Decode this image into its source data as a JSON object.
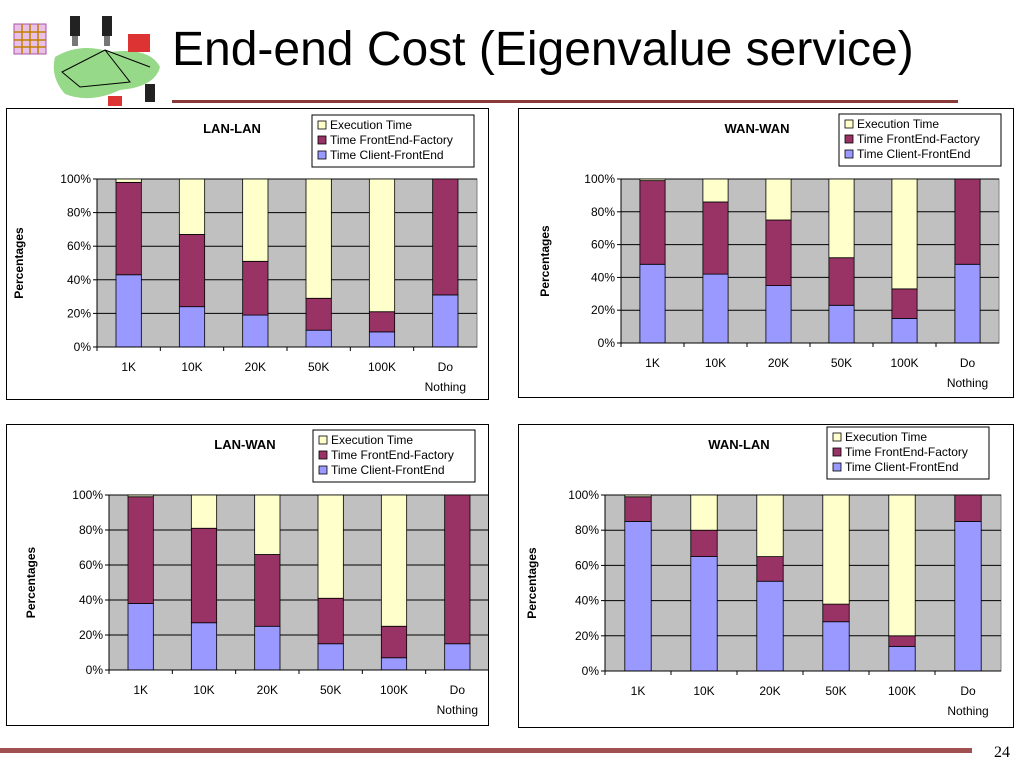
{
  "slide": {
    "title": "End-end Cost (Eigenvalue service)",
    "page_number": "24"
  },
  "colors": {
    "execution": "#ffffcc",
    "frontend_factory": "#993366",
    "client_frontend": "#9999ff",
    "plot_bg": "#c0c0c0",
    "rule": "#8b3a3a"
  },
  "chart_data": [
    {
      "type": "bar",
      "stacked": "percent",
      "title": "LAN-LAN",
      "ylabel": "Percentages",
      "categories": [
        "1K",
        "10K",
        "20K",
        "50K",
        "100K",
        "Do Nothing"
      ],
      "yticks": [
        "0%",
        "20%",
        "40%",
        "60%",
        "80%",
        "100%"
      ],
      "ylim": [
        0,
        100
      ],
      "legend_position": "top-right",
      "series": [
        {
          "name": "Time Client-FrontEnd",
          "values": [
            43,
            24,
            19,
            10,
            9,
            31
          ]
        },
        {
          "name": "Time FrontEnd-Factory",
          "values": [
            55,
            43,
            32,
            19,
            12,
            69
          ]
        },
        {
          "name": "Execution Time",
          "values": [
            2,
            33,
            49,
            71,
            79,
            0
          ]
        }
      ]
    },
    {
      "type": "bar",
      "stacked": "percent",
      "title": "WAN-WAN",
      "ylabel": "Percentages",
      "categories": [
        "1K",
        "10K",
        "20K",
        "50K",
        "100K",
        "Do Nothing"
      ],
      "yticks": [
        "0%",
        "20%",
        "40%",
        "60%",
        "80%",
        "100%"
      ],
      "ylim": [
        0,
        100
      ],
      "legend_position": "top-right",
      "series": [
        {
          "name": "Time Client-FrontEnd",
          "values": [
            48,
            42,
            35,
            23,
            15,
            48
          ]
        },
        {
          "name": "Time FrontEnd-Factory",
          "values": [
            51,
            44,
            40,
            29,
            18,
            52
          ]
        },
        {
          "name": "Execution Time",
          "values": [
            1,
            14,
            25,
            48,
            67,
            0
          ]
        }
      ]
    },
    {
      "type": "bar",
      "stacked": "percent",
      "title": "LAN-WAN",
      "ylabel": "Percentages",
      "categories": [
        "1K",
        "10K",
        "20K",
        "50K",
        "100K",
        "Do Nothing"
      ],
      "yticks": [
        "0%",
        "20%",
        "40%",
        "60%",
        "80%",
        "100%"
      ],
      "ylim": [
        0,
        100
      ],
      "legend_position": "top-right",
      "series": [
        {
          "name": "Time Client-FrontEnd",
          "values": [
            38,
            27,
            25,
            15,
            7,
            15
          ]
        },
        {
          "name": "Time FrontEnd-Factory",
          "values": [
            61,
            54,
            41,
            26,
            18,
            85
          ]
        },
        {
          "name": "Execution Time",
          "values": [
            1,
            19,
            34,
            59,
            75,
            0
          ]
        }
      ]
    },
    {
      "type": "bar",
      "stacked": "percent",
      "title": "WAN-LAN",
      "ylabel": "Percentages",
      "categories": [
        "1K",
        "10K",
        "20K",
        "50K",
        "100K",
        "Do Nothing"
      ],
      "yticks": [
        "0%",
        "20%",
        "40%",
        "60%",
        "80%",
        "100%"
      ],
      "ylim": [
        0,
        100
      ],
      "legend_position": "top-right",
      "series": [
        {
          "name": "Time Client-FrontEnd",
          "values": [
            85,
            65,
            51,
            28,
            14,
            85
          ]
        },
        {
          "name": "Time FrontEnd-Factory",
          "values": [
            14,
            15,
            14,
            10,
            6,
            15
          ]
        },
        {
          "name": "Execution Time",
          "values": [
            1,
            20,
            35,
            62,
            80,
            0
          ]
        }
      ]
    }
  ]
}
